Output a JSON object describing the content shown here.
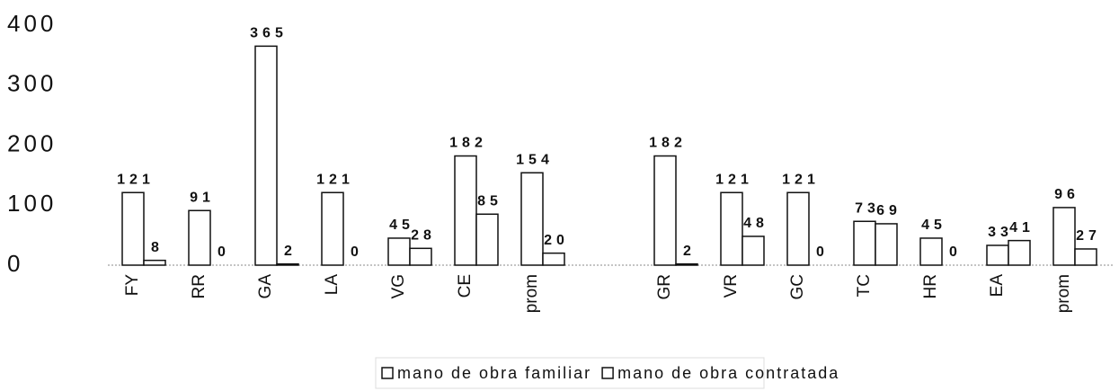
{
  "chart_data": {
    "type": "bar",
    "categories": [
      "FY",
      "RR",
      "GA",
      "LA",
      "VG",
      "CE",
      "prom",
      null,
      "GR",
      "VR",
      "GC",
      "TC",
      "HR",
      "EA",
      "prom"
    ],
    "series": [
      {
        "name": "mano de obra familiar",
        "color": "#ffffff",
        "values": [
          121,
          91,
          365,
          121,
          45,
          182,
          154,
          null,
          182,
          121,
          121,
          73,
          45,
          33,
          96
        ]
      },
      {
        "name": "mano de obra contratada",
        "color": "#ffffff",
        "values": [
          8,
          0,
          2,
          0,
          28,
          85,
          20,
          null,
          2,
          48,
          0,
          69,
          0,
          41,
          27
        ]
      }
    ],
    "ylim": [
      0,
      400
    ],
    "yticks": [
      0,
      100,
      200,
      300,
      400
    ],
    "grid": false,
    "legend": "bottom"
  }
}
